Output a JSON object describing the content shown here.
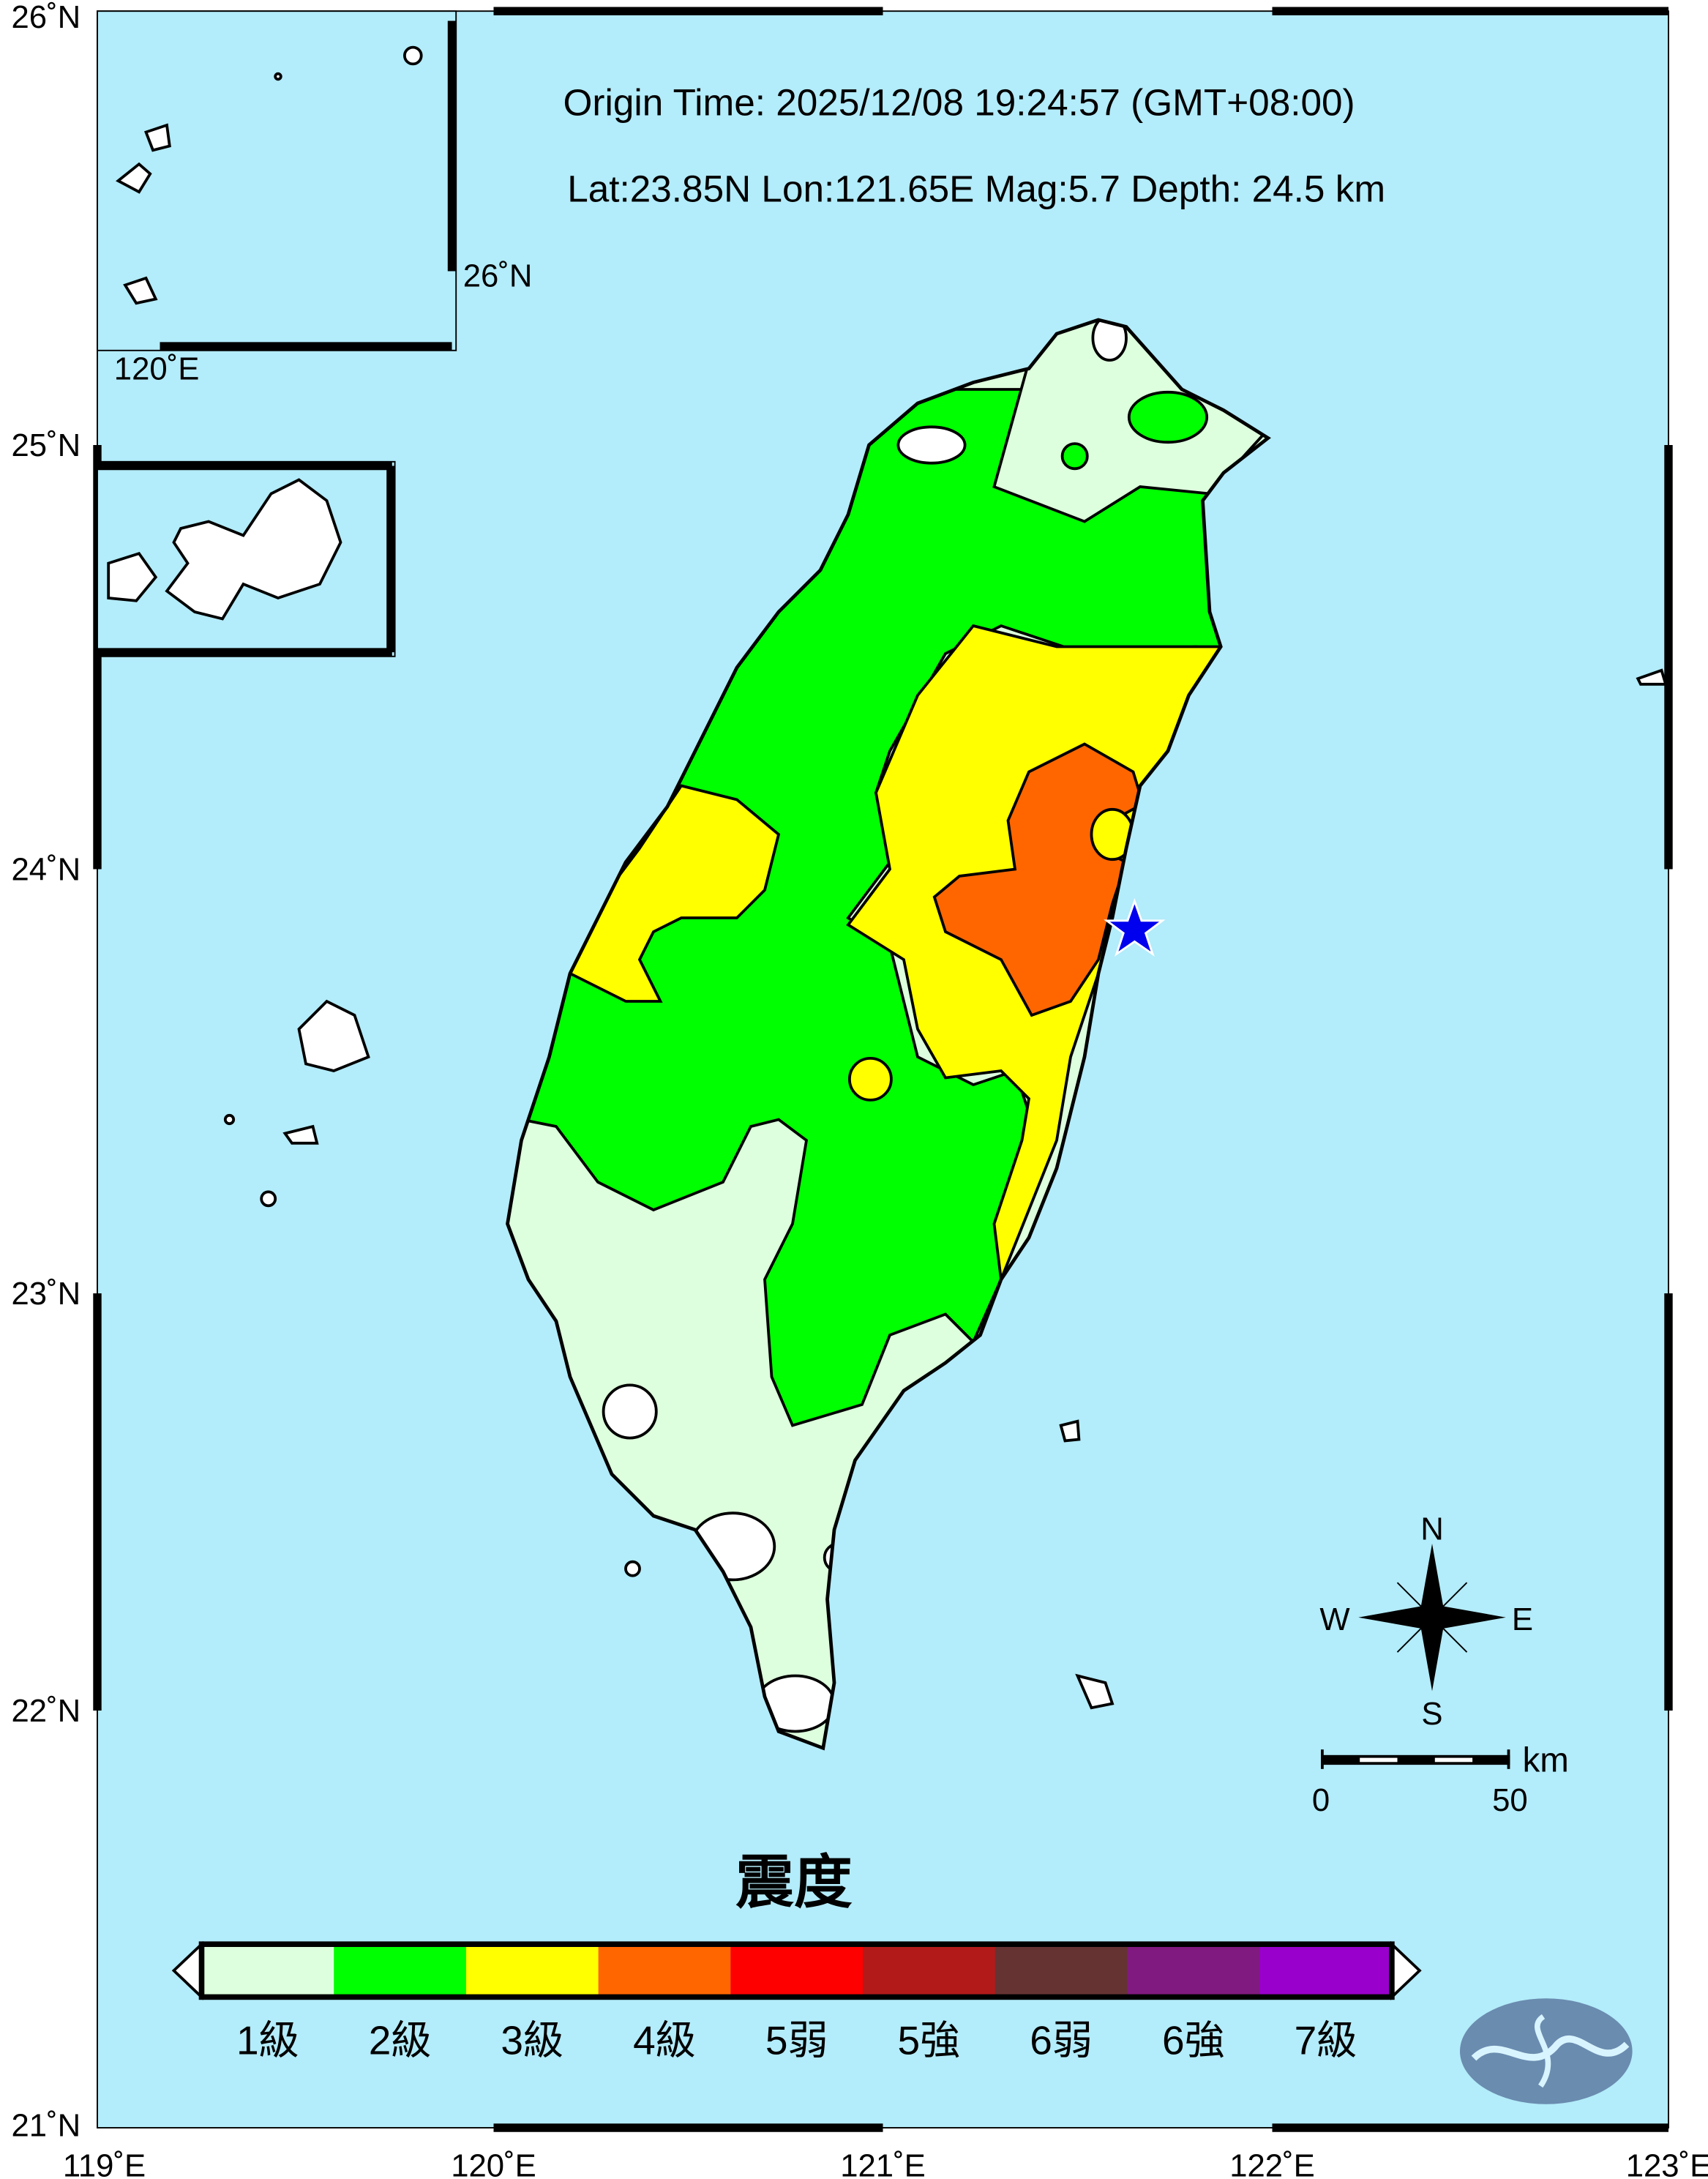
{
  "header": {
    "origin_time": "Origin Time:  2025/12/08   19:24:57   (GMT+08:00)",
    "params": "Lat:23.85N  Lon:121.65E  Mag:5.7  Depth: 24.5 km"
  },
  "epicenter": {
    "lat": 23.85,
    "lon": 121.65,
    "icon": "star-icon",
    "color": "#0000EE"
  },
  "axes": {
    "lon_labels": [
      "119˚E",
      "120˚E",
      "121˚E",
      "122˚E",
      "123˚E"
    ],
    "lat_labels": [
      "26˚N",
      "25˚N",
      "24˚N",
      "23˚N",
      "22˚N",
      "21˚N"
    ],
    "inset_lat_label": "26˚N",
    "inset_lon_label": "120˚E"
  },
  "compass": {
    "n": "N",
    "s": "S",
    "e": "E",
    "w": "W"
  },
  "scale_bar": {
    "unit": "km",
    "start": "0",
    "end": "50"
  },
  "legend": {
    "title": "震度",
    "items": [
      {
        "label": "1級",
        "color": "#DDFFDD"
      },
      {
        "label": "2級",
        "color": "#00FF00"
      },
      {
        "label": "3級",
        "color": "#FFFF00"
      },
      {
        "label": "4級",
        "color": "#FF6600"
      },
      {
        "label": "5弱",
        "color": "#FF0000"
      },
      {
        "label": "5強",
        "color": "#B21A1A"
      },
      {
        "label": "6弱",
        "color": "#663333"
      },
      {
        "label": "6強",
        "color": "#801A80"
      },
      {
        "label": "7級",
        "color": "#9900CC"
      }
    ]
  },
  "colors": {
    "sea": "#B3ECFA",
    "land_outside": "#FFFFFF",
    "logo": "#6A8CAF"
  }
}
